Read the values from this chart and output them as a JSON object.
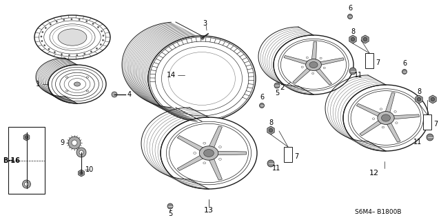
{
  "bg_color": "#ffffff",
  "diagram_code": "S6M4– B1800B",
  "b16_label": "B-16",
  "fig_width": 6.4,
  "fig_height": 3.19,
  "dpi": 100
}
